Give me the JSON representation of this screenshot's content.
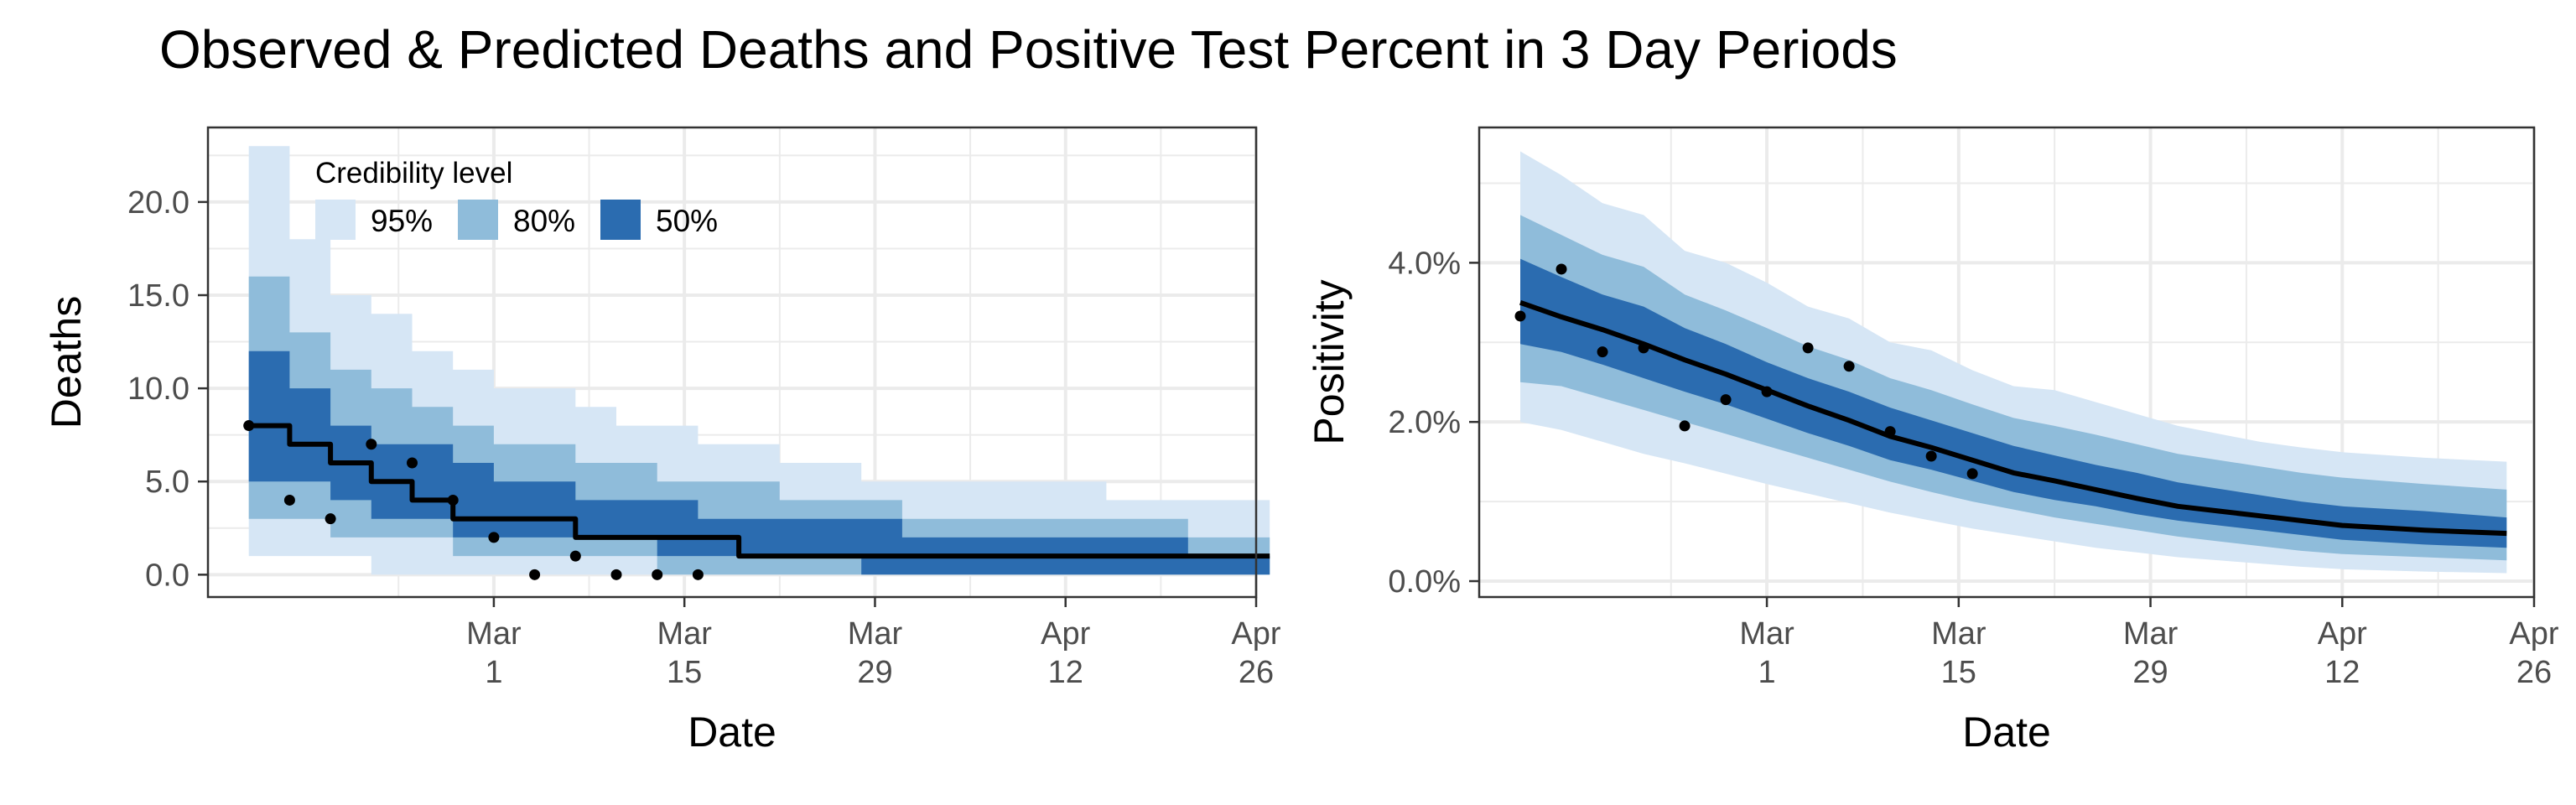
{
  "title": "Observed & Predicted Deaths and Positive Test Percent in 3 Day Periods",
  "colors": {
    "band95": "#d6e6f5",
    "band80": "#8fbcda",
    "band50": "#2b6cb0",
    "median": "#000000",
    "points": "#000000",
    "grid": "#ebebeb",
    "panel_border": "#333333"
  },
  "legend": {
    "title": "Credibility level",
    "items": [
      "95%",
      "80%",
      "50%"
    ],
    "placement": "top-left inside left panel"
  },
  "chart_data": [
    {
      "type": "area",
      "panel": "deaths",
      "xlabel": "Date",
      "ylabel": "Deaths",
      "xlim": [
        "2021-02-08",
        "2021-04-26"
      ],
      "ylim": [
        -1.2,
        24.0
      ],
      "x_ticks": [
        {
          "date": "2021-03-01",
          "label_line1": "Mar",
          "label_line2": "1"
        },
        {
          "date": "2021-03-15",
          "label_line1": "Mar",
          "label_line2": "15"
        },
        {
          "date": "2021-03-29",
          "label_line1": "Mar",
          "label_line2": "29"
        },
        {
          "date": "2021-04-12",
          "label_line1": "Apr",
          "label_line2": "12"
        },
        {
          "date": "2021-04-26",
          "label_line1": "Apr",
          "label_line2": "26"
        }
      ],
      "y_ticks": [
        {
          "value": 0,
          "label": "0.0"
        },
        {
          "value": 5,
          "label": "5.0"
        },
        {
          "value": 10,
          "label": "10.0"
        },
        {
          "value": 15,
          "label": "15.0"
        },
        {
          "value": 20,
          "label": "20.0"
        }
      ],
      "grid": true,
      "step": true,
      "x": [
        "2021-02-11",
        "2021-02-14",
        "2021-02-17",
        "2021-02-20",
        "2021-02-23",
        "2021-02-26",
        "2021-03-01",
        "2021-03-04",
        "2021-03-07",
        "2021-03-10",
        "2021-03-13",
        "2021-03-16",
        "2021-03-19",
        "2021-03-22",
        "2021-03-25",
        "2021-03-28",
        "2021-03-31",
        "2021-04-03",
        "2021-04-06",
        "2021-04-09",
        "2021-04-12",
        "2021-04-15",
        "2021-04-18",
        "2021-04-21",
        "2021-04-24"
      ],
      "median": [
        8,
        7,
        6,
        5,
        4,
        3,
        3,
        3,
        2,
        2,
        2,
        2,
        1,
        1,
        1,
        1,
        1,
        1,
        1,
        1,
        1,
        1,
        1,
        1,
        1
      ],
      "lo95": [
        1,
        1,
        1,
        0,
        0,
        0,
        0,
        0,
        0,
        0,
        0,
        0,
        0,
        0,
        0,
        0,
        0,
        0,
        0,
        0,
        0,
        0,
        0,
        0,
        0
      ],
      "hi95": [
        23,
        18,
        15,
        14,
        12,
        11,
        10,
        10,
        9,
        8,
        8,
        7,
        7,
        6,
        6,
        5,
        5,
        5,
        5,
        5,
        5,
        4,
        4,
        4,
        4
      ],
      "lo80": [
        3,
        3,
        2,
        2,
        2,
        1,
        1,
        1,
        1,
        1,
        0,
        0,
        0,
        0,
        0,
        0,
        0,
        0,
        0,
        0,
        0,
        0,
        0,
        0,
        0
      ],
      "hi80": [
        16,
        13,
        11,
        10,
        9,
        8,
        7,
        7,
        6,
        6,
        5,
        5,
        5,
        4,
        4,
        4,
        3,
        3,
        3,
        3,
        3,
        3,
        3,
        2,
        2
      ],
      "lo50": [
        5,
        5,
        4,
        3,
        3,
        2,
        2,
        2,
        2,
        2,
        1,
        1,
        1,
        1,
        1,
        0,
        0,
        0,
        0,
        0,
        0,
        0,
        0,
        0,
        0
      ],
      "hi50": [
        12,
        10,
        8,
        7,
        7,
        6,
        5,
        5,
        4,
        4,
        4,
        3,
        3,
        3,
        3,
        3,
        2,
        2,
        2,
        2,
        2,
        2,
        2,
        1,
        1
      ],
      "observed": [
        {
          "x": "2021-02-11",
          "y": 8
        },
        {
          "x": "2021-02-14",
          "y": 4
        },
        {
          "x": "2021-02-17",
          "y": 3
        },
        {
          "x": "2021-02-20",
          "y": 7
        },
        {
          "x": "2021-02-23",
          "y": 6
        },
        {
          "x": "2021-02-26",
          "y": 4
        },
        {
          "x": "2021-03-01",
          "y": 2
        },
        {
          "x": "2021-03-04",
          "y": 0
        },
        {
          "x": "2021-03-07",
          "y": 1
        },
        {
          "x": "2021-03-10",
          "y": 0
        },
        {
          "x": "2021-03-13",
          "y": 0
        },
        {
          "x": "2021-03-16",
          "y": 0
        }
      ]
    },
    {
      "type": "area",
      "panel": "positivity",
      "xlabel": "Date",
      "ylabel": "Positivity",
      "xlim": [
        "2021-02-08",
        "2021-04-26"
      ],
      "ylim": [
        -0.2,
        5.7
      ],
      "x_ticks": [
        {
          "date": "2021-03-01",
          "label_line1": "Mar",
          "label_line2": "1"
        },
        {
          "date": "2021-03-15",
          "label_line1": "Mar",
          "label_line2": "15"
        },
        {
          "date": "2021-03-29",
          "label_line1": "Mar",
          "label_line2": "29"
        },
        {
          "date": "2021-04-12",
          "label_line1": "Apr",
          "label_line2": "12"
        },
        {
          "date": "2021-04-26",
          "label_line1": "Apr",
          "label_line2": "26"
        }
      ],
      "y_ticks": [
        {
          "value": 0,
          "label": "0.0%"
        },
        {
          "value": 2,
          "label": "2.0%"
        },
        {
          "value": 4,
          "label": "4.0%"
        }
      ],
      "grid": true,
      "step": false,
      "x": [
        "2021-02-11",
        "2021-02-14",
        "2021-02-17",
        "2021-02-20",
        "2021-02-23",
        "2021-02-26",
        "2021-03-01",
        "2021-03-04",
        "2021-03-07",
        "2021-03-10",
        "2021-03-13",
        "2021-03-16",
        "2021-03-19",
        "2021-03-22",
        "2021-03-25",
        "2021-03-28",
        "2021-03-31",
        "2021-04-03",
        "2021-04-06",
        "2021-04-09",
        "2021-04-12",
        "2021-04-15",
        "2021-04-18",
        "2021-04-21",
        "2021-04-24"
      ],
      "median": [
        3.5,
        3.32,
        3.16,
        2.98,
        2.78,
        2.6,
        2.4,
        2.2,
        2.02,
        1.82,
        1.68,
        1.52,
        1.36,
        1.26,
        1.15,
        1.04,
        0.94,
        0.88,
        0.82,
        0.76,
        0.7,
        0.64,
        0.6
      ],
      "lo95": [
        2.0,
        1.9,
        1.75,
        1.6,
        1.48,
        1.35,
        1.22,
        1.1,
        0.98,
        0.86,
        0.76,
        0.66,
        0.58,
        0.5,
        0.42,
        0.36,
        0.3,
        0.26,
        0.22,
        0.18,
        0.15,
        0.12,
        0.1
      ],
      "hi95": [
        5.4,
        5.1,
        4.75,
        4.6,
        4.15,
        4.0,
        3.75,
        3.45,
        3.3,
        3.0,
        2.9,
        2.65,
        2.45,
        2.4,
        2.25,
        2.1,
        1.95,
        1.85,
        1.75,
        1.68,
        1.62,
        1.55,
        1.5
      ],
      "lo80": [
        2.5,
        2.45,
        2.3,
        2.15,
        2.0,
        1.85,
        1.7,
        1.55,
        1.4,
        1.25,
        1.12,
        1.0,
        0.9,
        0.8,
        0.72,
        0.64,
        0.56,
        0.5,
        0.44,
        0.38,
        0.34,
        0.3,
        0.26
      ],
      "hi80": [
        4.6,
        4.35,
        4.1,
        3.95,
        3.6,
        3.4,
        3.18,
        2.95,
        2.78,
        2.55,
        2.4,
        2.22,
        2.05,
        1.95,
        1.84,
        1.72,
        1.6,
        1.52,
        1.44,
        1.36,
        1.3,
        1.22,
        1.15
      ],
      "lo50": [
        2.98,
        2.88,
        2.72,
        2.55,
        2.38,
        2.22,
        2.04,
        1.86,
        1.7,
        1.52,
        1.4,
        1.26,
        1.12,
        1.02,
        0.94,
        0.84,
        0.76,
        0.7,
        0.64,
        0.58,
        0.52,
        0.46,
        0.42
      ],
      "hi50": [
        4.05,
        3.82,
        3.6,
        3.45,
        3.18,
        2.98,
        2.75,
        2.55,
        2.38,
        2.18,
        2.02,
        1.86,
        1.7,
        1.58,
        1.46,
        1.36,
        1.24,
        1.16,
        1.08,
        1.0,
        0.94,
        0.88,
        0.8
      ],
      "x_band": [
        "2021-02-11",
        "2021-02-14",
        "2021-02-17",
        "2021-02-20",
        "2021-02-23",
        "2021-02-26",
        "2021-03-01",
        "2021-03-04",
        "2021-03-07",
        "2021-03-10",
        "2021-03-13",
        "2021-03-16",
        "2021-03-19",
        "2021-03-22",
        "2021-03-25",
        "2021-03-28",
        "2021-03-31",
        "2021-04-03",
        "2021-04-06",
        "2021-04-09",
        "2021-04-12",
        "2021-04-18",
        "2021-04-24"
      ],
      "observed": [
        {
          "x": "2021-02-11",
          "y": 3.33
        },
        {
          "x": "2021-02-14",
          "y": 3.92
        },
        {
          "x": "2021-02-17",
          "y": 2.88
        },
        {
          "x": "2021-02-20",
          "y": 2.93
        },
        {
          "x": "2021-02-23",
          "y": 1.95
        },
        {
          "x": "2021-02-26",
          "y": 2.28
        },
        {
          "x": "2021-03-01",
          "y": 2.38
        },
        {
          "x": "2021-03-04",
          "y": 2.93
        },
        {
          "x": "2021-03-07",
          "y": 2.7
        },
        {
          "x": "2021-03-10",
          "y": 1.88
        },
        {
          "x": "2021-03-13",
          "y": 1.57
        },
        {
          "x": "2021-03-16",
          "y": 1.35
        }
      ]
    }
  ]
}
